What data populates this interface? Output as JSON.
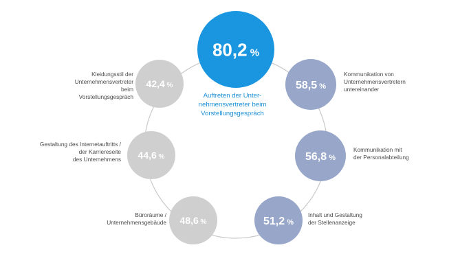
{
  "colors": {
    "highlight": "#1a96e0",
    "blue_grey": "#97a6c9",
    "light_grey": "#cfcfcf",
    "ring": "#c8c8c8",
    "center_text": "#1a8fd6",
    "label_text": "#4a4a4a"
  },
  "chart_data": {
    "type": "circular-bubble",
    "center_caption": "Auftreten der Unter-\nnehmensvertreter beim\nVorstellungsgespräch",
    "items": [
      {
        "label": "Auftreten der Unter-\nnehmensvertreter beim\nVorstellungsgespräch",
        "value": 80.2,
        "value_text": "80,2",
        "unit": "%",
        "style": "highlight"
      },
      {
        "label": "Kommunikation von\nUnternehmensvertretern\nuntereinander",
        "value": 58.5,
        "value_text": "58,5",
        "unit": "%",
        "style": "blue_grey"
      },
      {
        "label": "Kommunikation mit\nder Personalabteilung",
        "value": 56.8,
        "value_text": "56,8",
        "unit": "%",
        "style": "blue_grey"
      },
      {
        "label": "Inhalt und Gestaltung\nder Stellenanzeige",
        "value": 51.2,
        "value_text": "51,2",
        "unit": "%",
        "style": "blue_grey"
      },
      {
        "label": "Büroräume /\nUnternehmensgebäude",
        "value": 48.6,
        "value_text": "48,6",
        "unit": "%",
        "style": "light_grey"
      },
      {
        "label": "Gestaltung des Internetauftritts /\nder Karriereseite\ndes Unternehmens",
        "value": 44.6,
        "value_text": "44,6",
        "unit": "%",
        "style": "light_grey"
      },
      {
        "label": "Kleidungsstil der\nUnternehmensvertreter beim\nVorstellungsgespräch",
        "value": 42.4,
        "value_text": "42,4",
        "unit": "%",
        "style": "light_grey"
      }
    ]
  }
}
